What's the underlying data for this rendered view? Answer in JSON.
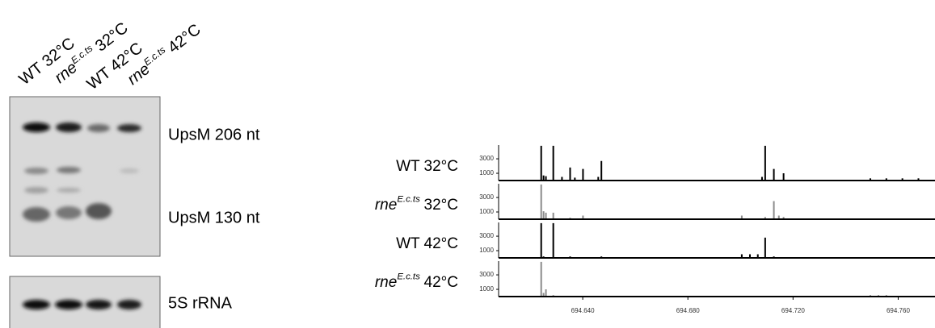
{
  "blot": {
    "lanes": [
      {
        "text": "WT 32°C"
      },
      {
        "italic": "rne",
        "sup": "E.c.ts",
        "text": "32°C"
      },
      {
        "text": "WT 42°C"
      },
      {
        "italic": "rne",
        "sup": "E.c.ts",
        "text": "42°C"
      }
    ],
    "bands": [
      "UpsM 206 nt",
      "UpsM 130 nt",
      "5S rRNA"
    ]
  },
  "chart_data": [
    {
      "type": "bar",
      "title": {
        "text": "WT 32°C"
      },
      "color": "#000000",
      "x": [
        694.6242,
        694.6251,
        694.626,
        694.6288,
        694.6321,
        694.6352,
        694.637,
        694.6401,
        694.6459,
        694.6471,
        694.7082,
        694.7094,
        694.7127,
        694.7164,
        694.7494,
        694.7555,
        694.7616,
        694.7677
      ],
      "values": [
        4800,
        700,
        600,
        4800,
        500,
        1800,
        400,
        1600,
        500,
        2700,
        500,
        4800,
        1600,
        1000,
        300,
        300,
        300,
        300
      ],
      "xlim": [
        694.608,
        694.774
      ],
      "ylim": [
        0,
        4900
      ],
      "yticks": [
        1000,
        3000
      ]
    },
    {
      "type": "bar",
      "title": {
        "italic": "rne",
        "sup": "E.c.ts",
        "text": "32°C"
      },
      "color": "#8c8c8c",
      "x": [
        694.6242,
        694.6251,
        694.626,
        694.6288,
        694.6352,
        694.6401,
        694.7005,
        694.7094,
        694.7127,
        694.7146,
        694.7164
      ],
      "values": [
        4800,
        1100,
        900,
        900,
        200,
        500,
        500,
        300,
        2500,
        500,
        300
      ],
      "xlim": [
        694.608,
        694.774
      ],
      "ylim": [
        0,
        4900
      ],
      "yticks": [
        1000,
        3000
      ]
    },
    {
      "type": "bar",
      "title": {
        "text": "WT 42°C"
      },
      "color": "#000000",
      "x": [
        694.6242,
        694.6251,
        694.6288,
        694.6352,
        694.6471,
        694.7005,
        694.7036,
        694.7066,
        694.7094,
        694.7127
      ],
      "values": [
        4800,
        200,
        4800,
        200,
        200,
        500,
        500,
        500,
        2800,
        200
      ],
      "xlim": [
        694.608,
        694.774
      ],
      "ylim": [
        0,
        4900
      ],
      "yticks": [
        1000,
        3000
      ]
    },
    {
      "type": "bar",
      "title": {
        "italic": "rne",
        "sup": "E.c.ts",
        "text": "42°C"
      },
      "color": "#8c8c8c",
      "x": [
        694.6242,
        694.6251,
        694.626,
        694.6288,
        694.7494,
        694.7525,
        694.7555
      ],
      "values": [
        4800,
        500,
        1000,
        200,
        200,
        200,
        200
      ],
      "xlim": [
        694.608,
        694.774
      ],
      "ylim": [
        0,
        4900
      ],
      "yticks": [
        1000,
        3000
      ],
      "xticks": [
        {
          "value": 694.64,
          "label": "694.640"
        },
        {
          "value": 694.68,
          "label": "694.680"
        },
        {
          "value": 694.72,
          "label": "694.720"
        },
        {
          "value": 694.76,
          "label": "694.760"
        }
      ]
    }
  ]
}
